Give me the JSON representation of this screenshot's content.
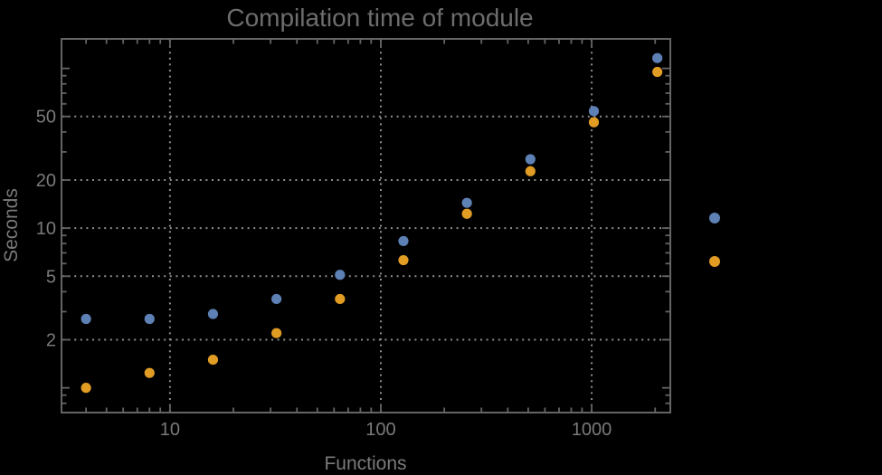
{
  "chart_data": {
    "type": "scatter",
    "title": "Compilation time of module",
    "xlabel": "Functions",
    "ylabel": "Seconds",
    "x_scale": "log",
    "y_scale": "log",
    "xlim": [
      3.06,
      2360
    ],
    "ylim": [
      0.7,
      153
    ],
    "x_major_ticks": [
      10,
      100,
      1000
    ],
    "x_tick_labels": [
      "10",
      "100",
      "1000"
    ],
    "y_major_ticks": [
      2,
      5,
      10,
      20,
      50
    ],
    "y_tick_labels": [
      "2",
      "5",
      "10",
      "20",
      "50"
    ],
    "grid": "dotted lines at labeled major ticks only",
    "x": [
      4,
      8,
      16,
      32,
      64,
      128,
      256,
      512,
      1024,
      2048
    ],
    "series": [
      {
        "name": "blue",
        "color": "#5E81B5",
        "values": [
          2.7,
          2.7,
          2.9,
          3.6,
          5.1,
          8.3,
          14.4,
          27,
          54,
          116
        ]
      },
      {
        "name": "orange",
        "color": "#E19C24",
        "values": [
          1.0,
          1.24,
          1.5,
          2.2,
          3.6,
          6.3,
          12.3,
          22.7,
          46,
          95
        ]
      }
    ],
    "legend": {
      "position": "right-of-plot",
      "labels_visible": false,
      "marker_colors": [
        "#5E81B5",
        "#E19C24"
      ]
    },
    "colors": {
      "background": "#000000",
      "frame": "#646464",
      "grid": "#8e8e8e",
      "tick_text": "#7a7a7a",
      "title_text": "#6d6d6d"
    }
  }
}
